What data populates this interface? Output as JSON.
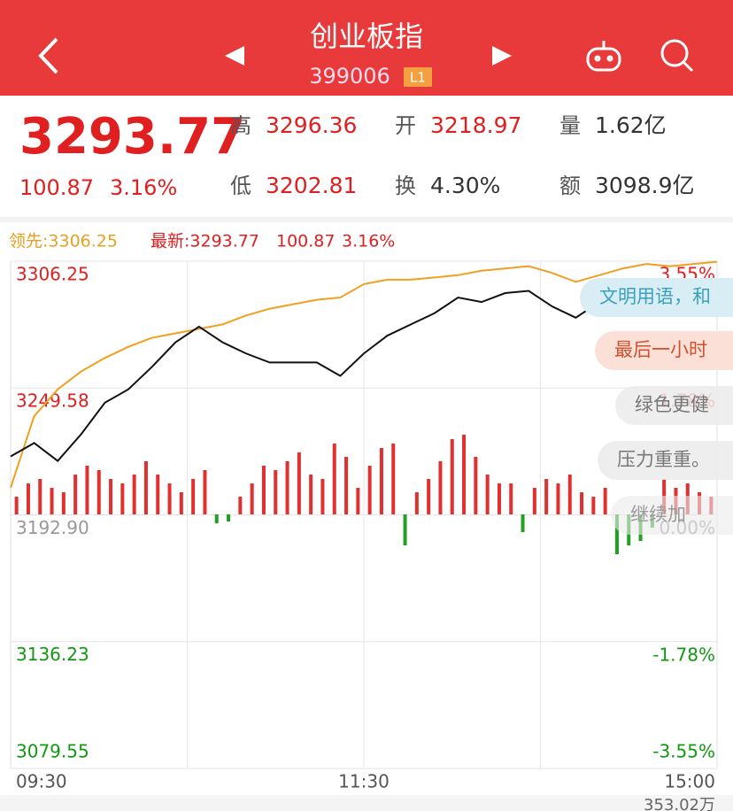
{
  "header": {
    "title": "创业板指",
    "code": "399006",
    "badge": "L1"
  },
  "quote": {
    "price": "3293.77",
    "change": "100.87",
    "change_pct": "3.16%",
    "stats": [
      {
        "label": "高",
        "value": "3296.36"
      },
      {
        "label": "开",
        "value": "3218.97"
      },
      {
        "label": "量",
        "value": "1.62亿"
      },
      {
        "label": "低",
        "value": "3202.81"
      },
      {
        "label": "换",
        "value": "4.30%"
      },
      {
        "label": "额",
        "value": "3098.9亿"
      }
    ]
  },
  "legend": {
    "lead": "领先:3306.25",
    "latest": "最新:3293.77",
    "change": "100.87",
    "change_pct": "3.16%"
  },
  "comments": [
    "文明用语，和",
    "最后一小时",
    "绿色更健",
    "压力重重。",
    "继续加"
  ],
  "footer": {
    "volume": "353.02万"
  },
  "chart_data": {
    "type": "line",
    "x": [
      0,
      8,
      16,
      24,
      32,
      40,
      48,
      56,
      64,
      72,
      80,
      88,
      96,
      104,
      112,
      120,
      128,
      136,
      144,
      152,
      160,
      168,
      176,
      184,
      192,
      200,
      208,
      216,
      224,
      232,
      240
    ],
    "series": [
      {
        "color": "#f0a020",
        "values": [
          3205,
          3237,
          3249,
          3257,
          3263,
          3268,
          3272,
          3274,
          3276,
          3278,
          3282,
          3285,
          3287,
          3289,
          3290,
          3296,
          3298,
          3298,
          3299,
          3300,
          3302,
          3303,
          3304,
          3301,
          3297,
          3300,
          3303,
          3305,
          3304,
          3305,
          3306
        ]
      },
      {
        "color": "#111111",
        "values": [
          3219,
          3225,
          3217,
          3229,
          3243,
          3249,
          3259,
          3270,
          3277,
          3270,
          3265,
          3261,
          3261,
          3261,
          3255,
          3265,
          3273,
          3278,
          3283,
          3290,
          3288,
          3292,
          3293,
          3286,
          3281,
          3288,
          3292,
          3295,
          3295,
          3295,
          3294
        ]
      }
    ],
    "xlim": [
      0,
      240
    ],
    "xticks": [
      {
        "value": 0,
        "label": "09:30"
      },
      {
        "value": 120,
        "label": "11:30"
      },
      {
        "value": 240,
        "label": "15:00"
      }
    ],
    "xgrid": [
      60,
      120,
      180
    ],
    "ylim": [
      3079.55,
      3306.25
    ],
    "yticks": [
      3306.25,
      3249.58,
      {
        "value": 3192.9,
        "label": "3192.90"
      },
      3136.23,
      3079.55
    ],
    "y2lim": [
      -3.55,
      3.55
    ],
    "y2ticks": [
      {
        "value": 3.55,
        "label": "3.55%"
      },
      {
        "value": 1.78,
        "label": "1.78%"
      },
      {
        "value": 0,
        "label": "0.00%"
      },
      {
        "value": -1.78,
        "label": "-1.78%"
      },
      {
        "value": -3.55,
        "label": "-3.55%"
      }
    ],
    "grid": true,
    "bars": {
      "up_color": "#e03030",
      "down_color": "#22a022",
      "ylim": [
        -100,
        100
      ],
      "x": [
        2,
        6,
        10,
        14,
        18,
        22,
        26,
        30,
        34,
        38,
        42,
        46,
        50,
        54,
        58,
        62,
        66,
        70,
        74,
        78,
        82,
        86,
        90,
        94,
        98,
        102,
        106,
        110,
        114,
        118,
        122,
        126,
        130,
        134,
        138,
        142,
        146,
        150,
        154,
        158,
        162,
        166,
        170,
        174,
        178,
        182,
        186,
        190,
        194,
        198,
        202,
        206,
        210,
        214,
        218,
        222,
        226,
        230,
        234,
        238
      ],
      "values": [
        20,
        35,
        40,
        30,
        25,
        45,
        55,
        50,
        40,
        35,
        45,
        60,
        45,
        35,
        25,
        40,
        50,
        -10,
        -8,
        20,
        35,
        55,
        50,
        60,
        70,
        45,
        40,
        80,
        65,
        30,
        55,
        75,
        80,
        -35,
        25,
        40,
        60,
        85,
        90,
        65,
        45,
        35,
        35,
        -20,
        30,
        40,
        35,
        45,
        25,
        20,
        30,
        -45,
        -35,
        -30,
        -15,
        40,
        30,
        35,
        25,
        20
      ]
    }
  }
}
